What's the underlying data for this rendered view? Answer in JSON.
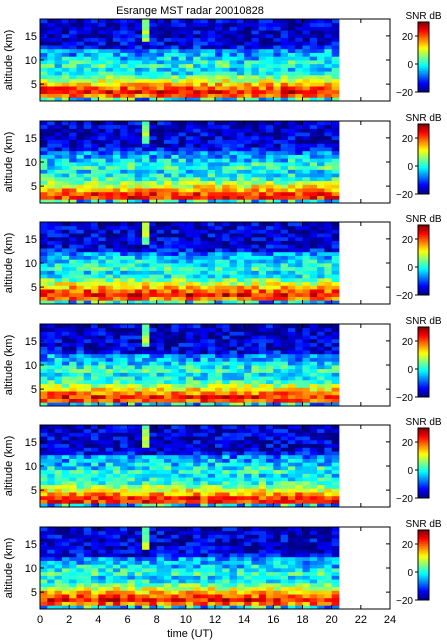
{
  "title": "Esrange MST radar 20010828",
  "chart_data": {
    "type": "heatmap",
    "title": "Esrange MST radar 20010828",
    "xlabel": "time (UT)",
    "ylabel": "altitude (km)",
    "xlim": [
      0,
      24
    ],
    "ylim": [
      1.5,
      18.5
    ],
    "data_x_range": [
      0,
      20.5
    ],
    "x_ticks": [
      "0",
      "2",
      "4",
      "6",
      "8",
      "10",
      "12",
      "14",
      "16",
      "18",
      "20",
      "22",
      "24"
    ],
    "y_ticks": [
      "5",
      "10",
      "15"
    ],
    "y_tick_values": [
      5,
      10,
      15
    ],
    "colorbar": {
      "label": "SNR dB",
      "range": [
        -20,
        30
      ],
      "ticks": [
        "20",
        "0",
        "−20"
      ],
      "tick_values": [
        20,
        0,
        -20
      ]
    },
    "panels": [
      {
        "ylabel": "altitude (km)",
        "peak_alt": 3.5
      },
      {
        "ylabel": "altitude (km)",
        "peak_alt": 3.0
      },
      {
        "ylabel": "altitude (km)",
        "peak_alt": 3.5
      },
      {
        "ylabel": "altitude (km)",
        "peak_alt": 3.2
      },
      {
        "ylabel": "altitude (km)",
        "peak_alt": 3.0
      },
      {
        "ylabel": "altitude (km)",
        "peak_alt": 3.5
      }
    ]
  }
}
